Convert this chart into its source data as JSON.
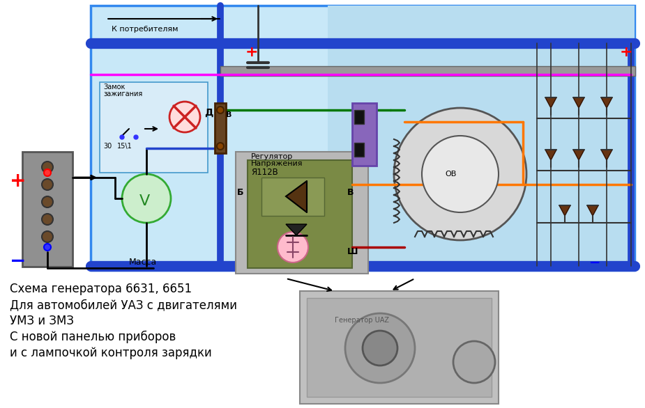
{
  "bg_color": "#ffffff",
  "diagram_bg": "#c8e8f8",
  "fig_width": 9.25,
  "fig_height": 5.86,
  "title_lines": [
    "Схема генератора 6631, 6651",
    "Для автомобилей УАЗ с двигателями",
    "УМЗ и ЗМЗ",
    "С новой панелью приборов",
    "и с лампочкой контроля зарядки"
  ],
  "k_potrebitelyam": "К потребителям",
  "zamok_text1": "Замок",
  "zamok_text2": "зажигания",
  "massa_text": "Масса",
  "reg_line1": "Регулятор",
  "reg_line2": "Напряжения",
  "reg_line3": "Я112В",
  "label_D": "Д",
  "label_V_term": "В",
  "label_B_reg": "Б",
  "label_V_reg": "В",
  "label_Sh": "Ш",
  "label_OV": "ОВ",
  "label_30": "30",
  "label_15_1": "15\\1",
  "plus_color": "#ff0000",
  "minus_color": "#0000ff",
  "blue_wire": "#2244cc",
  "green_wire": "#007700",
  "magenta_wire": "#ff00ff",
  "orange_wire": "#ff7700",
  "dark_red_wire": "#aa0000",
  "gray_color": "#888888",
  "brown_color": "#884422",
  "olive_color": "#7a8a45",
  "purple_color": "#8866bb",
  "diode_color": "#663311"
}
